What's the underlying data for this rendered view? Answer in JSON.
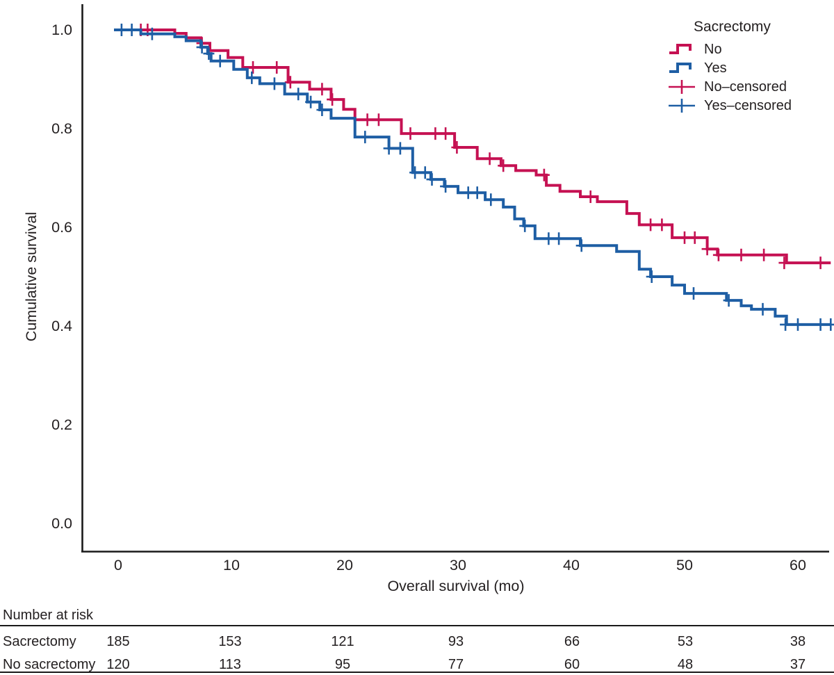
{
  "figure": {
    "background": "#ffffff",
    "axis_color": "#1a1a1a",
    "text_color": "#231f20"
  },
  "chart_data": {
    "type": "line",
    "subtype": "kaplan-meier-step-curves",
    "title": "",
    "xlabel": "Overall survival (mo)",
    "ylabel": "Cumulative survival",
    "xlim": [
      0,
      63
    ],
    "ylim": [
      0.0,
      1.0
    ],
    "grid": false,
    "x_ticks": [
      0,
      10,
      20,
      30,
      40,
      50,
      60
    ],
    "y_ticks": [
      {
        "value": 1.0,
        "label": "1.0"
      },
      {
        "value": 0.8,
        "label": "0.8"
      },
      {
        "value": 0.6,
        "label": "0.6"
      },
      {
        "value": 0.4,
        "label": "0.4"
      },
      {
        "value": 0.2,
        "label": "0.2"
      },
      {
        "value": 0.0,
        "label": "0.0"
      }
    ],
    "end_time": 62.9,
    "legend": {
      "title": "Sacrectomy",
      "position": "top-right",
      "entries": [
        {
          "label": "No",
          "type": "step-line",
          "color": "#c51152"
        },
        {
          "label": "Yes",
          "type": "step-line",
          "color": "#1e5ea4"
        },
        {
          "label": "No–censored",
          "type": "plus-marker",
          "color": "#c51152"
        },
        {
          "label": "Yes–censored",
          "type": "plus-marker",
          "color": "#1e5ea4"
        }
      ]
    },
    "series": [
      {
        "name": "No",
        "color": "#c51152",
        "steps": [
          [
            0,
            1.0
          ],
          [
            5,
            0.993
          ],
          [
            6,
            0.984
          ],
          [
            7.3,
            0.973
          ],
          [
            8.1,
            0.958
          ],
          [
            9.7,
            0.944
          ],
          [
            11,
            0.924
          ],
          [
            15,
            0.894
          ],
          [
            16.9,
            0.88
          ],
          [
            18.8,
            0.859
          ],
          [
            19.9,
            0.839
          ],
          [
            20.9,
            0.818
          ],
          [
            25,
            0.79
          ],
          [
            29.7,
            0.762
          ],
          [
            31.7,
            0.739
          ],
          [
            33.8,
            0.725
          ],
          [
            35.1,
            0.715
          ],
          [
            36.9,
            0.706
          ],
          [
            37.8,
            0.685
          ],
          [
            39,
            0.673
          ],
          [
            40.8,
            0.662
          ],
          [
            42.3,
            0.652
          ],
          [
            44.9,
            0.628
          ],
          [
            46,
            0.605
          ],
          [
            48.9,
            0.579
          ],
          [
            52,
            0.556
          ],
          [
            52.9,
            0.544
          ],
          [
            59,
            0.528
          ]
        ],
        "censored": [
          [
            2.0,
            1.0
          ],
          [
            2.6,
            1.0
          ],
          [
            7.4,
            0.973
          ],
          [
            11.9,
            0.924
          ],
          [
            14.0,
            0.924
          ],
          [
            15.2,
            0.894
          ],
          [
            18.0,
            0.88
          ],
          [
            18.9,
            0.859
          ],
          [
            22.0,
            0.818
          ],
          [
            23.0,
            0.818
          ],
          [
            25.8,
            0.79
          ],
          [
            28.0,
            0.79
          ],
          [
            28.9,
            0.79
          ],
          [
            29.9,
            0.762
          ],
          [
            32.8,
            0.739
          ],
          [
            34.0,
            0.725
          ],
          [
            37.6,
            0.706
          ],
          [
            41.7,
            0.662
          ],
          [
            47.0,
            0.605
          ],
          [
            48.0,
            0.605
          ],
          [
            50.0,
            0.579
          ],
          [
            50.9,
            0.579
          ],
          [
            52.0,
            0.556
          ],
          [
            53.0,
            0.544
          ],
          [
            55.0,
            0.544
          ],
          [
            57.0,
            0.544
          ],
          [
            58.8,
            0.528
          ],
          [
            62.0,
            0.528
          ]
        ]
      },
      {
        "name": "Yes",
        "color": "#1e5ea4",
        "steps": [
          [
            0,
            1.0
          ],
          [
            2,
            0.992
          ],
          [
            5,
            0.986
          ],
          [
            6,
            0.978
          ],
          [
            7.3,
            0.965
          ],
          [
            7.9,
            0.952
          ],
          [
            8.2,
            0.937
          ],
          [
            10.2,
            0.92
          ],
          [
            11.4,
            0.903
          ],
          [
            12.5,
            0.891
          ],
          [
            14.7,
            0.87
          ],
          [
            16.7,
            0.854
          ],
          [
            17.8,
            0.838
          ],
          [
            18.8,
            0.821
          ],
          [
            20.9,
            0.783
          ],
          [
            23.9,
            0.76
          ],
          [
            26,
            0.711
          ],
          [
            27.6,
            0.697
          ],
          [
            28.8,
            0.683
          ],
          [
            30,
            0.67
          ],
          [
            32.4,
            0.656
          ],
          [
            34,
            0.641
          ],
          [
            35,
            0.617
          ],
          [
            35.8,
            0.603
          ],
          [
            36.8,
            0.577
          ],
          [
            40.8,
            0.563
          ],
          [
            44,
            0.551
          ],
          [
            46,
            0.515
          ],
          [
            47,
            0.5
          ],
          [
            48.9,
            0.483
          ],
          [
            50,
            0.466
          ],
          [
            53.7,
            0.452
          ],
          [
            55,
            0.441
          ],
          [
            55.9,
            0.434
          ],
          [
            58,
            0.42
          ],
          [
            59,
            0.403
          ]
        ],
        "censored": [
          [
            0.3,
            1.0
          ],
          [
            1.2,
            1.0
          ],
          [
            3.0,
            0.992
          ],
          [
            7.4,
            0.965
          ],
          [
            8.0,
            0.952
          ],
          [
            9.0,
            0.937
          ],
          [
            11.8,
            0.903
          ],
          [
            13.8,
            0.891
          ],
          [
            15.9,
            0.87
          ],
          [
            17.0,
            0.854
          ],
          [
            18.0,
            0.838
          ],
          [
            21.8,
            0.783
          ],
          [
            23.9,
            0.76
          ],
          [
            24.9,
            0.76
          ],
          [
            26.2,
            0.711
          ],
          [
            27.1,
            0.711
          ],
          [
            27.7,
            0.697
          ],
          [
            28.9,
            0.683
          ],
          [
            30.9,
            0.67
          ],
          [
            31.7,
            0.67
          ],
          [
            32.9,
            0.656
          ],
          [
            35.9,
            0.603
          ],
          [
            38.0,
            0.577
          ],
          [
            38.9,
            0.577
          ],
          [
            40.9,
            0.563
          ],
          [
            47.1,
            0.5
          ],
          [
            50.8,
            0.466
          ],
          [
            53.9,
            0.452
          ],
          [
            56.9,
            0.434
          ],
          [
            58.9,
            0.403
          ],
          [
            60.0,
            0.403
          ],
          [
            62.0,
            0.403
          ],
          [
            62.9,
            0.403
          ]
        ]
      }
    ]
  },
  "risk_table": {
    "header": "Number at risk",
    "time_points": [
      0,
      10,
      20,
      30,
      40,
      50,
      60
    ],
    "rows": [
      {
        "label": "Sacrectomy",
        "values": [
          "185",
          "153",
          "121",
          "93",
          "66",
          "53",
          "38"
        ]
      },
      {
        "label": "No sacrectomy",
        "values": [
          "120",
          "113",
          "95",
          "77",
          "60",
          "48",
          "37"
        ]
      }
    ]
  }
}
